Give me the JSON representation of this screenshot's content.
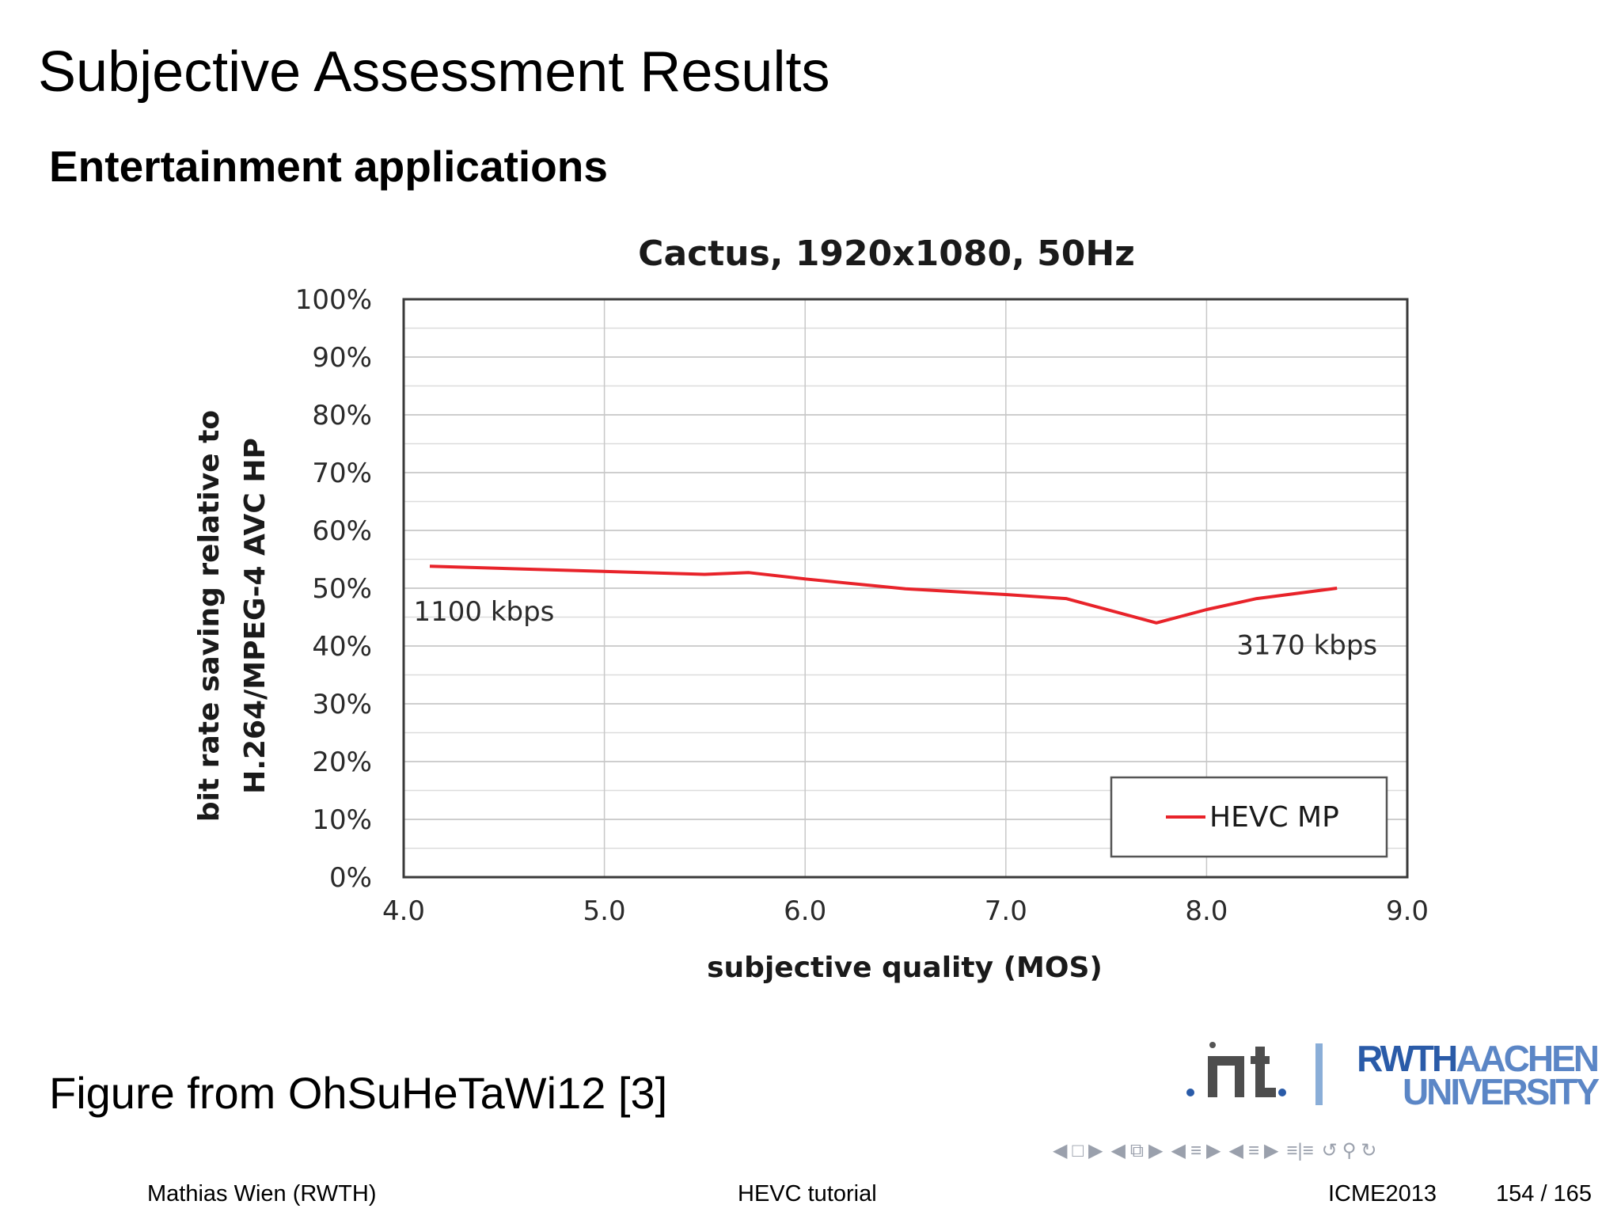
{
  "slide": {
    "title": "Subjective Assessment Results",
    "subtitle": "Entertainment applications",
    "caption": "Figure from OhSuHeTaWi12 [3]"
  },
  "logos": {
    "int": "int",
    "rwth_line1_bold": "RWTH",
    "rwth_line1_light": "AACHEN",
    "rwth_line2": "UNIVERSITY",
    "colors": {
      "rwth_blue": "#2a5ba8",
      "rwth_light_blue": "#5b86c6",
      "separator": "#8aaed8"
    }
  },
  "navigation": {
    "icons": [
      "nav-left-arrow-icon",
      "nav-frame-icon",
      "nav-right-arrow-icon",
      "nav-left-arrow-icon",
      "nav-subsection-icon",
      "nav-right-arrow-icon",
      "nav-left-arrow-icon",
      "nav-section-icon",
      "nav-right-arrow-icon",
      "nav-left-arrow-icon",
      "nav-section-list-icon",
      "nav-right-arrow-icon",
      "nav-align-icon",
      "nav-back-icon",
      "nav-search-icon",
      "nav-forward-icon"
    ]
  },
  "footer": {
    "author": "Mathias Wien  (RWTH)",
    "title": "HEVC tutorial",
    "event": "ICME2013",
    "page": "154 / 165"
  },
  "chart_data": {
    "type": "line",
    "title": "Cactus, 1920x1080, 50Hz",
    "xlabel": "subjective quality (MOS)",
    "ylabel_line1": "bit rate saving relative to",
    "ylabel_line2": "H.264/MPEG-4 AVC HP",
    "xlim": [
      4.0,
      9.0
    ],
    "ylim": [
      0,
      100
    ],
    "x_ticks": [
      "4.0",
      "5.0",
      "6.0",
      "7.0",
      "8.0",
      "9.0"
    ],
    "y_ticks": [
      "0%",
      "10%",
      "20%",
      "30%",
      "40%",
      "50%",
      "60%",
      "70%",
      "80%",
      "90%",
      "100%"
    ],
    "grid": true,
    "legend_position": "bottom-right",
    "series": [
      {
        "name": "HEVC MP",
        "color": "#e8232a",
        "x": [
          4.13,
          5.5,
          5.72,
          6.0,
          6.5,
          7.0,
          7.3,
          7.75,
          8.0,
          8.25,
          8.65
        ],
        "y": [
          53.8,
          52.4,
          52.7,
          51.6,
          49.9,
          48.9,
          48.2,
          44.0,
          46.3,
          48.2,
          50.0
        ]
      }
    ],
    "annotations": [
      {
        "text": "1100 kbps",
        "x": 4.4,
        "y": 46.0
      },
      {
        "text": "3170 kbps",
        "x": 8.5,
        "y": 40.2
      }
    ]
  }
}
